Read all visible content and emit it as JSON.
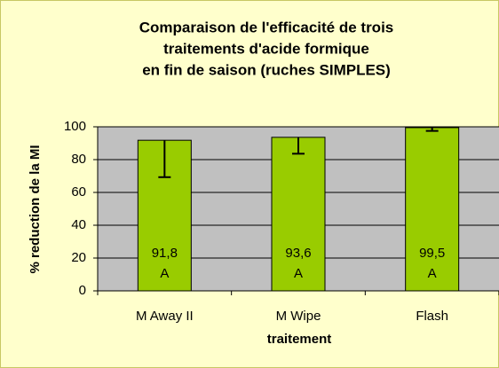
{
  "chart_data": {
    "type": "bar",
    "title": [
      "Comparaison de l'efficacité de trois",
      "traitements d'acide formique",
      "en fin de saison (ruches SIMPLES)"
    ],
    "x_label": "traitement",
    "y_label": "% reduction  de la MI",
    "categories": [
      "M Away II",
      "M Wipe",
      "Flash"
    ],
    "values": [
      91.8,
      93.6,
      99.5
    ],
    "value_labels": [
      "91,8",
      "93,6",
      "99,5"
    ],
    "group_labels": [
      "A",
      "A",
      "A"
    ],
    "errors": [
      22.5,
      10,
      2
    ],
    "color": "#99cc00",
    "ylim": [
      0,
      100
    ],
    "yticks": [
      0,
      20,
      40,
      60,
      80,
      100
    ],
    "grid": true
  }
}
